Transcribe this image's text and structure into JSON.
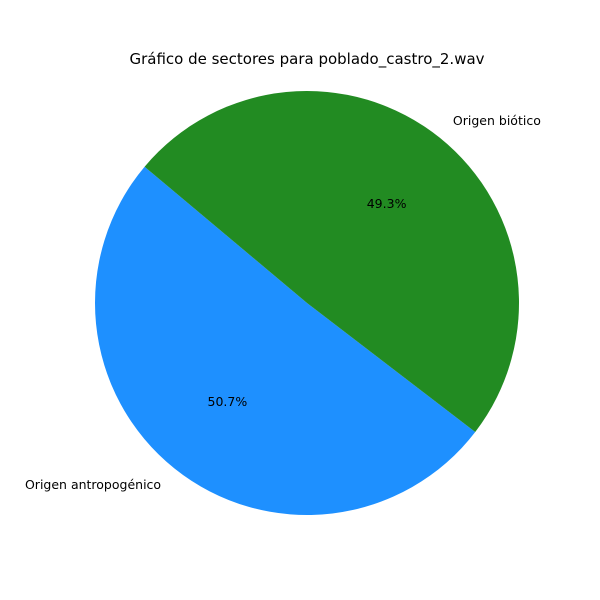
{
  "chart_data": {
    "type": "pie",
    "title": "Gráfico de sectores para poblado_castro_2.wav",
    "slices": [
      {
        "label": "Origen antropogénico",
        "value": 50.7,
        "pct_label": "50.7%",
        "color": "#1e90ff"
      },
      {
        "label": "Origen biótico",
        "value": 49.3,
        "pct_label": "49.3%",
        "color": "#228b22"
      }
    ],
    "start_angle_deg": 140,
    "direction": "counterclockwise",
    "legend": "none"
  }
}
